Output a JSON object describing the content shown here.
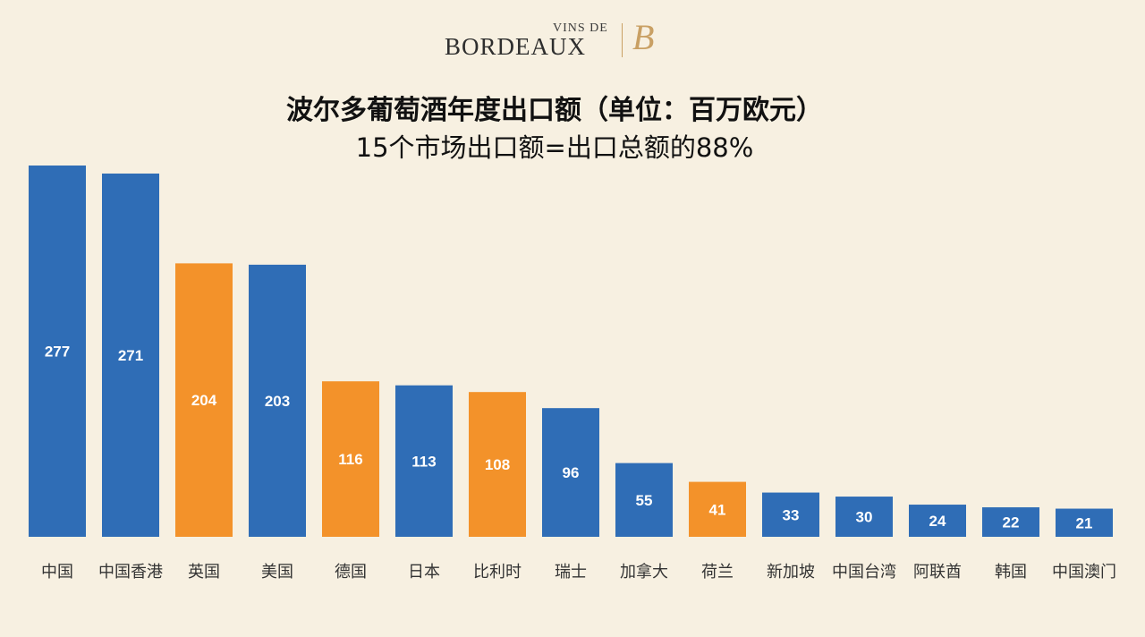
{
  "logo": {
    "vins": "VINS DE",
    "bordeaux": "BORDEAUX",
    "mark": "B"
  },
  "colors": {
    "background": "#f7f0e1",
    "blue": "#2f6db6",
    "orange": "#f3922a"
  },
  "chart_data": {
    "type": "bar",
    "title": "波尔多葡萄酒年度出口额（单位：百万欧元）",
    "subtitle": "15个市场出口额=出口总额的88%",
    "categories": [
      "中国",
      "中国香港",
      "英国",
      "美国",
      "德国",
      "日本",
      "比利时",
      "瑞士",
      "加拿大",
      "荷兰",
      "新加坡",
      "中国台湾",
      "阿联酋",
      "韩国",
      "中国澳门"
    ],
    "values": [
      277,
      271,
      204,
      203,
      116,
      113,
      108,
      96,
      55,
      41,
      33,
      30,
      24,
      22,
      21
    ],
    "bar_colors": [
      "blue",
      "blue",
      "orange",
      "blue",
      "orange",
      "blue",
      "orange",
      "blue",
      "blue",
      "orange",
      "blue",
      "blue",
      "blue",
      "blue",
      "blue"
    ],
    "data_labels": true,
    "xlabel": "",
    "ylabel": "",
    "ylim": [
      0,
      277
    ],
    "grid": false,
    "legend": "none"
  }
}
